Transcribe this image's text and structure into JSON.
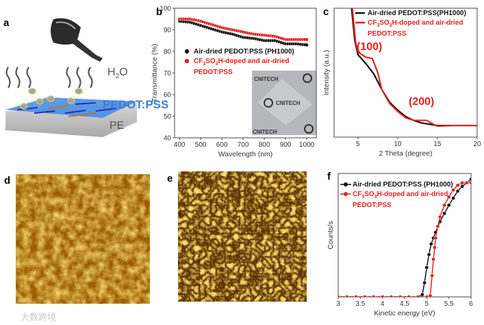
{
  "panels": {
    "a": "a",
    "b": "b",
    "c": "c",
    "d": "d",
    "e": "e",
    "f": "f"
  },
  "illustration": {
    "h2o": "H",
    "h2o_sub": "2",
    "h2o_end": "O",
    "film": "PEDOT:PSS",
    "substrate": "PE"
  },
  "inset": {
    "logo_text": "CNITECH"
  },
  "watermark": "大数跨境",
  "legend": {
    "black": "Air-dried PEDOT:PSS (PH1000)",
    "black_c": "Air-dried PEDOT:PSS(PH1000)",
    "red": [
      "CF",
      "3",
      "SO",
      "3",
      "H-doped and air-dried"
    ],
    "red_line2": "PEDOT:PSS"
  },
  "colors": {
    "black": "#111111",
    "red": "#e8201e",
    "film": "#3b7fd6"
  },
  "chart_data": [
    {
      "id": "b",
      "type": "scatter",
      "title": "",
      "xlabel": "Wavelength (nm)",
      "ylabel": "Transmittance (%)",
      "xlim": [
        377,
        1045
      ],
      "ylim": [
        40,
        100
      ],
      "xticks": [
        400,
        500,
        600,
        700,
        800,
        900,
        1000
      ],
      "yticks": [
        40,
        50,
        60,
        70,
        80,
        90,
        100
      ],
      "legend_position": "left",
      "series": [
        {
          "name": "Air-dried PEDOT:PSS (PH1000)",
          "color": "#111111",
          "x": [
            400,
            450,
            500,
            550,
            600,
            650,
            700,
            750,
            800,
            850,
            900,
            950,
            1000
          ],
          "y": [
            94,
            93.5,
            92,
            90.5,
            89,
            88,
            86.5,
            86,
            85,
            85,
            83.5,
            83.5,
            83
          ]
        },
        {
          "name": "CF3SO3H-doped and air-dried PEDOT:PSS",
          "color": "#e8201e",
          "x": [
            400,
            450,
            500,
            550,
            600,
            650,
            700,
            750,
            800,
            850,
            900,
            950,
            1000
          ],
          "y": [
            95,
            95,
            94,
            92.5,
            91,
            90,
            89,
            88,
            87.5,
            87,
            85.5,
            85.5,
            85.5
          ]
        }
      ]
    },
    {
      "id": "c",
      "type": "line",
      "title": "",
      "xlabel": "2 Theta (degree)",
      "ylabel": "Intensity (a.u.)",
      "xlim": [
        2,
        20
      ],
      "ylim": [
        0,
        1
      ],
      "xticks": [
        5,
        10,
        15,
        20
      ],
      "annotations": [
        "(100)",
        "(200)"
      ],
      "series": [
        {
          "name": "Air-dried PEDOT:PSS(PH1000)",
          "color": "#111111",
          "x": [
            4.2,
            4.6,
            5,
            6,
            7,
            8,
            9,
            10,
            11,
            12,
            13,
            14,
            15,
            17,
            20
          ],
          "y": [
            1.0,
            0.75,
            0.64,
            0.57,
            0.49,
            0.37,
            0.27,
            0.21,
            0.16,
            0.13,
            0.11,
            0.1,
            0.09,
            0.09,
            0.09
          ]
        },
        {
          "name": "CF3SO3H-doped and air-dried PEDOT:PSS",
          "color": "#e8201e",
          "x": [
            4.3,
            4.7,
            5,
            6,
            6.8,
            7.5,
            8,
            9,
            10,
            11,
            12,
            13,
            13.6,
            14.5,
            15,
            17,
            20
          ],
          "y": [
            1.0,
            0.74,
            0.66,
            0.62,
            0.61,
            0.5,
            0.37,
            0.26,
            0.2,
            0.15,
            0.13,
            0.13,
            0.13,
            0.1,
            0.085,
            0.09,
            0.09
          ]
        }
      ]
    },
    {
      "id": "f",
      "type": "scatter",
      "title": "",
      "xlabel": "Kinetic energy (eV)",
      "ylabel": "Counts/s",
      "xlim": [
        3,
        6
      ],
      "ylim": [
        0,
        1.05
      ],
      "xticks": [
        3.0,
        3.5,
        4.0,
        4.5,
        5.0,
        5.5,
        6.0
      ],
      "series": [
        {
          "name": "Air-dried PEDOT:PSS (PH1000)",
          "color": "#111111",
          "x": [
            3.0,
            3.2,
            3.4,
            3.6,
            3.8,
            4.0,
            4.2,
            4.4,
            4.6,
            4.8,
            4.9,
            4.95,
            5.0,
            5.05,
            5.1,
            5.15,
            5.2,
            5.3,
            5.4,
            5.5,
            5.6,
            5.7,
            5.8,
            5.9,
            6.0
          ],
          "y": [
            0,
            0,
            0,
            0,
            0,
            0,
            0,
            0,
            0,
            0,
            0.02,
            0.12,
            0.25,
            0.36,
            0.45,
            0.5,
            0.55,
            0.64,
            0.71,
            0.78,
            0.84,
            0.9,
            0.94,
            0.97,
            1.0
          ]
        },
        {
          "name": "CF3SO3H-doped and air-dried PEDOT:PSS",
          "color": "#e8201e",
          "x": [
            3.0,
            3.2,
            3.4,
            3.6,
            3.8,
            4.0,
            4.2,
            4.4,
            4.6,
            4.8,
            5.0,
            5.08,
            5.12,
            5.15,
            5.18,
            5.2,
            5.25,
            5.3,
            5.4,
            5.5,
            5.6,
            5.7,
            5.8,
            5.9,
            6.0
          ],
          "y": [
            0,
            0,
            0,
            0,
            0,
            0,
            0,
            0,
            0,
            0,
            0,
            0.01,
            0.18,
            0.32,
            0.42,
            0.5,
            0.6,
            0.68,
            0.78,
            0.85,
            0.91,
            0.95,
            0.97,
            0.97,
            0.97
          ]
        }
      ]
    }
  ]
}
